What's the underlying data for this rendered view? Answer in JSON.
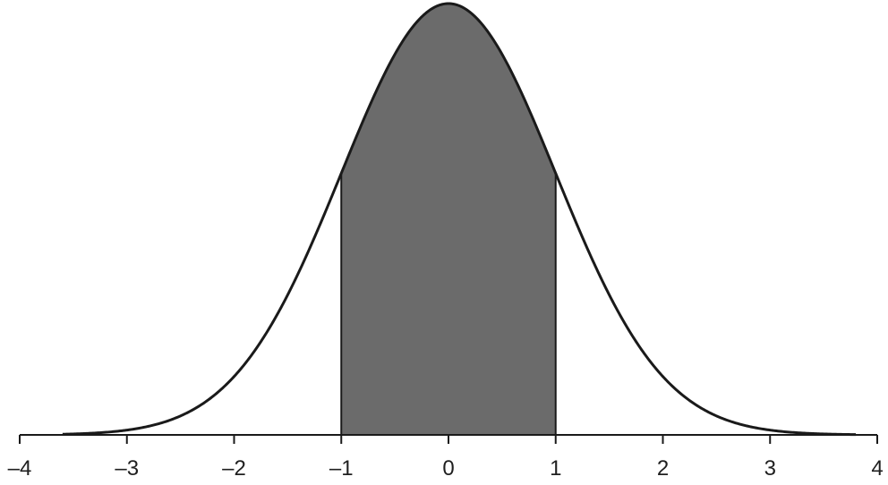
{
  "chart_data": {
    "type": "area",
    "title": "",
    "xlabel": "",
    "ylabel": "",
    "xlim": [
      -4,
      4
    ],
    "x_ticks": [
      -4,
      -3,
      -2,
      -1,
      0,
      1,
      2,
      3,
      4
    ],
    "x_tick_labels": [
      "–4",
      "–3",
      "–2",
      "–1",
      "0",
      "1",
      "2",
      "3",
      "4"
    ],
    "curve": {
      "function": "standard normal density",
      "mean": 0,
      "sd": 1,
      "x_range": [
        -3.6,
        3.8
      ]
    },
    "shaded_region": [
      -1,
      1
    ],
    "grid": false,
    "legend": "none",
    "colors": {
      "curve": "#1a1a1a",
      "shade": "#6b6b6b",
      "axis": "#1a1a1a",
      "background": "#ffffff"
    }
  }
}
